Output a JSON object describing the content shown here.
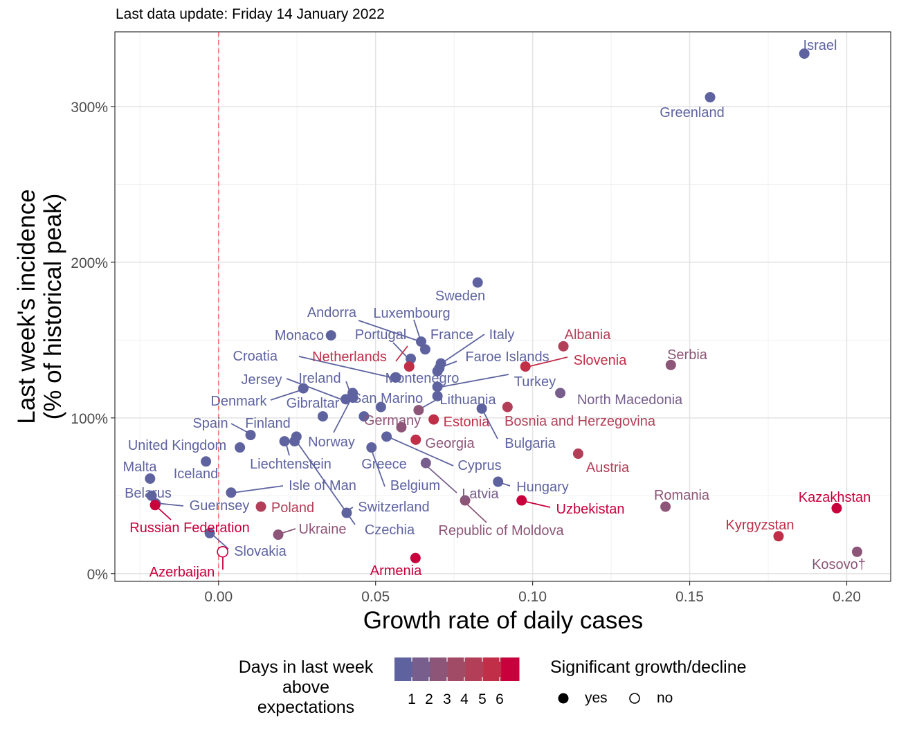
{
  "caption": "Last data update: Friday 14 January 2022",
  "legend": {
    "color_title": [
      "Days in last week",
      "above",
      "expectations"
    ],
    "color_ticks": [
      "1",
      "2",
      "3",
      "4",
      "5",
      "6"
    ],
    "colors": [
      "#5e63a0",
      "#775e8d",
      "#8d5577",
      "#a24b66",
      "#b23f57",
      "#c02e48",
      "#c8003c"
    ],
    "shape_title": "Significant growth/decline",
    "shape_items": [
      "yes",
      "no"
    ]
  },
  "chart_data": {
    "type": "scatter",
    "title": "",
    "xlabel": "Growth rate of daily cases",
    "ylabel": [
      "Last week's incidence",
      "(% of historical peak)"
    ],
    "xlim": [
      -0.033,
      0.214
    ],
    "ylim": [
      -5,
      348
    ],
    "xticks": [
      0.0,
      0.05,
      0.1,
      0.15,
      0.2
    ],
    "xtick_labels": [
      "0.00",
      "0.05",
      "0.10",
      "0.15",
      "0.20"
    ],
    "yticks": [
      0,
      100,
      200,
      300
    ],
    "ytick_labels": [
      "0%",
      "100%",
      "200%",
      "300%"
    ],
    "reference_line": {
      "x": 0,
      "style": "dashed",
      "color": "#f8766d"
    },
    "grid": true,
    "points": [
      {
        "name": "Israel",
        "x": 0.1865,
        "y": 334,
        "days": 0,
        "significant": true
      },
      {
        "name": "Greenland",
        "x": 0.1565,
        "y": 306,
        "days": 0,
        "significant": true
      },
      {
        "name": "Sweden",
        "x": 0.0825,
        "y": 187,
        "days": 0,
        "significant": true
      },
      {
        "name": "Monaco",
        "x": 0.0358,
        "y": 153,
        "days": 0,
        "significant": true
      },
      {
        "name": "Andorra",
        "x": 0.0645,
        "y": 149,
        "days": 0,
        "significant": true
      },
      {
        "name": "Luxembourg",
        "x": 0.0658,
        "y": 144,
        "days": 0,
        "significant": true
      },
      {
        "name": "Portugal",
        "x": 0.0612,
        "y": 138,
        "days": 0,
        "significant": true
      },
      {
        "name": "France",
        "x": 0.0708,
        "y": 135,
        "days": 0,
        "significant": true
      },
      {
        "name": "Italy",
        "x": 0.0703,
        "y": 132,
        "days": 0,
        "significant": true
      },
      {
        "name": "Faroe Islands",
        "x": 0.0697,
        "y": 130,
        "days": 0,
        "significant": true
      },
      {
        "name": "Netherlands",
        "x": 0.0607,
        "y": 133,
        "days": 5,
        "significant": true
      },
      {
        "name": "Croatia",
        "x": 0.0563,
        "y": 126,
        "days": 0,
        "significant": true
      },
      {
        "name": "Montenegro",
        "x": 0.0565,
        "y": 126,
        "days": 0,
        "significant": true
      },
      {
        "name": "Turkey",
        "x": 0.0697,
        "y": 120,
        "days": 0,
        "significant": true
      },
      {
        "name": "Lithuania",
        "x": 0.0697,
        "y": 114,
        "days": 0,
        "significant": true
      },
      {
        "name": "Albania",
        "x": 0.1098,
        "y": 146,
        "days": 4,
        "significant": true
      },
      {
        "name": "Slovenia",
        "x": 0.0977,
        "y": 133,
        "days": 5,
        "significant": true
      },
      {
        "name": "Serbia",
        "x": 0.144,
        "y": 134,
        "days": 2,
        "significant": true
      },
      {
        "name": "Jersey",
        "x": 0.0405,
        "y": 112,
        "days": 0,
        "significant": true
      },
      {
        "name": "Ireland",
        "x": 0.0427,
        "y": 116,
        "days": 0,
        "significant": true
      },
      {
        "name": "San Marino",
        "x": 0.0428,
        "y": 113,
        "days": 0,
        "significant": true
      },
      {
        "name": "Denmark",
        "x": 0.027,
        "y": 119,
        "days": 0,
        "significant": true
      },
      {
        "name": "Gibraltar",
        "x": 0.0332,
        "y": 101,
        "days": 0,
        "significant": true
      },
      {
        "name": "North Macedonia",
        "x": 0.1088,
        "y": 116,
        "days": 1,
        "significant": true
      },
      {
        "name": "Germany",
        "x": 0.0637,
        "y": 105,
        "days": 2,
        "significant": true
      },
      {
        "name": "Bosnia and Herzegovina",
        "x": 0.092,
        "y": 107,
        "days": 4,
        "significant": true
      },
      {
        "name": "Estonia",
        "x": 0.0685,
        "y": 99,
        "days": 5,
        "significant": true
      },
      {
        "name": "Bulgaria",
        "x": 0.0838,
        "y": 106,
        "days": 0,
        "significant": true
      },
      {
        "name": "Norway",
        "x": 0.0517,
        "y": 107,
        "days": 0,
        "significant": true
      },
      {
        "name": "Spain",
        "x": 0.0102,
        "y": 89,
        "days": 0,
        "significant": true
      },
      {
        "name": "Finland",
        "x": 0.0068,
        "y": 81,
        "days": 0,
        "significant": true
      },
      {
        "name": "United Kingdom",
        "x": -0.004,
        "y": 72,
        "days": 0,
        "significant": true
      },
      {
        "name": "Liechtenstein",
        "x": 0.0248,
        "y": 88,
        "days": 0,
        "significant": true
      },
      {
        "name": "Greece",
        "x": 0.0463,
        "y": 101,
        "days": 0,
        "significant": true
      },
      {
        "name": "Belgium",
        "x": 0.0487,
        "y": 81,
        "days": 0,
        "significant": true
      },
      {
        "name": "Cyprus",
        "x": 0.0535,
        "y": 88,
        "days": 0,
        "significant": true
      },
      {
        "name": "Georgia",
        "x": 0.0582,
        "y": 94,
        "days": 2,
        "significant": true
      },
      {
        "name": "Georgia2",
        "x": 0.0628,
        "y": 86,
        "days": 5,
        "significant": true
      },
      {
        "name": "Austria",
        "x": 0.1145,
        "y": 77,
        "days": 4,
        "significant": true
      },
      {
        "name": "Malta",
        "x": -0.0218,
        "y": 61,
        "days": 0,
        "significant": true
      },
      {
        "name": "Iceland",
        "x": 0.0242,
        "y": 85,
        "days": 0,
        "significant": true
      },
      {
        "name": "Latvia",
        "x": 0.066,
        "y": 71,
        "days": 1,
        "significant": true
      },
      {
        "name": "Hungary",
        "x": 0.089,
        "y": 59,
        "days": 0,
        "significant": true
      },
      {
        "name": "Romania",
        "x": 0.1423,
        "y": 43,
        "days": 2,
        "significant": true
      },
      {
        "name": "Kazakhstan",
        "x": 0.1968,
        "y": 42,
        "days": 6,
        "significant": true
      },
      {
        "name": "Belarus",
        "x": -0.0213,
        "y": 50,
        "days": 0,
        "significant": true
      },
      {
        "name": "Isle of Man",
        "x": 0.004,
        "y": 52,
        "days": 0,
        "significant": true
      },
      {
        "name": "Guernsey",
        "x": -0.02,
        "y": 45,
        "days": 0,
        "significant": true
      },
      {
        "name": "Poland",
        "x": 0.0135,
        "y": 43,
        "days": 4,
        "significant": true
      },
      {
        "name": "Switzerland",
        "x": 0.0408,
        "y": 39,
        "days": 0,
        "significant": true
      },
      {
        "name": "Uzbekistan",
        "x": 0.0965,
        "y": 47,
        "days": 6,
        "significant": true
      },
      {
        "name": "Republic of Moldova",
        "x": 0.0785,
        "y": 47,
        "days": 2,
        "significant": true
      },
      {
        "name": "Russian Federation",
        "x": -0.0202,
        "y": 44,
        "days": 6,
        "significant": true
      },
      {
        "name": "Ukraine",
        "x": 0.019,
        "y": 25,
        "days": 2,
        "significant": true
      },
      {
        "name": "Czechia",
        "x": 0.021,
        "y": 85,
        "days": 0,
        "significant": true
      },
      {
        "name": "Kyrgyzstan",
        "x": 0.1783,
        "y": 24,
        "days": 5,
        "significant": true
      },
      {
        "name": "Kosovo†",
        "x": 0.2033,
        "y": 14,
        "days": 2,
        "significant": true
      },
      {
        "name": "Slovakia",
        "x": -0.0028,
        "y": 26,
        "days": 0,
        "significant": true
      },
      {
        "name": "Azerbaijan",
        "x": 0.0013,
        "y": 14,
        "days": 6,
        "significant": false
      },
      {
        "name": "Armenia",
        "x": 0.0627,
        "y": 10,
        "days": 6,
        "significant": true
      }
    ]
  }
}
